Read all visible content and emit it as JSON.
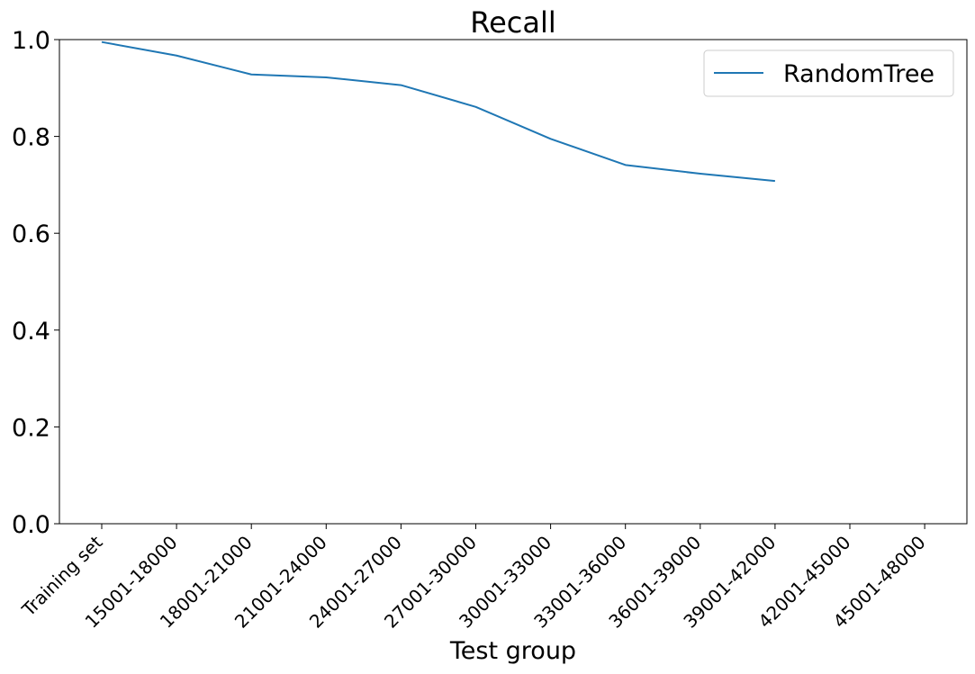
{
  "chart_data": {
    "type": "line",
    "title": "Recall",
    "xlabel": "Test group",
    "ylabel": "",
    "categories": [
      "Training set",
      "15001-18000",
      "18001-21000",
      "21001-24000",
      "24001-27000",
      "27001-30000",
      "30001-33000",
      "33001-36000",
      "36001-39000",
      "39001-42000",
      "42001-45000",
      "45001-48000"
    ],
    "series": [
      {
        "name": "RandomTree",
        "color": "#1f77b4",
        "values": [
          0.995,
          0.967,
          0.928,
          0.922,
          0.906,
          0.861,
          0.795,
          0.741,
          0.723,
          0.708,
          null,
          null
        ]
      }
    ],
    "ylim": [
      0,
      1.0
    ],
    "yticks": [
      "0.0",
      "0.2",
      "0.4",
      "0.6",
      "0.8",
      "1.0"
    ],
    "grid": false,
    "legend_position": "top-right"
  }
}
